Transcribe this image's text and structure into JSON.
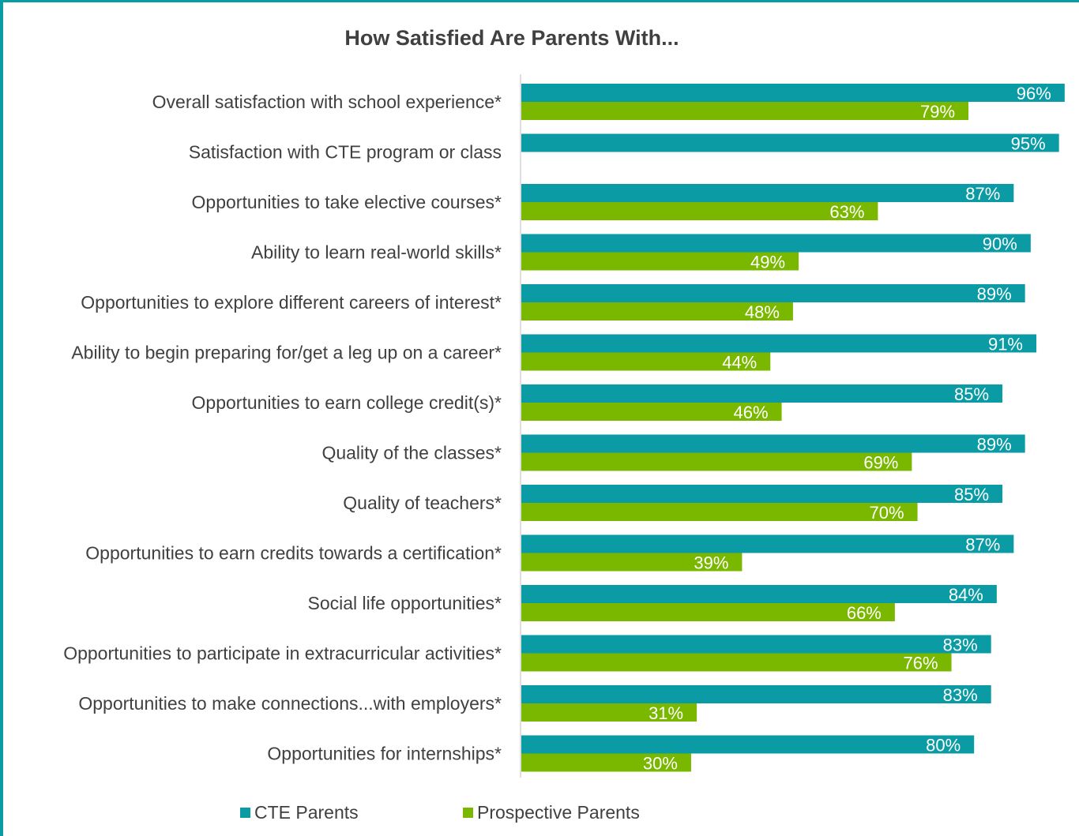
{
  "chart_data": {
    "type": "bar",
    "orientation": "horizontal",
    "title": "How Satisfied Are Parents With...",
    "xlabel": "",
    "ylabel": "",
    "xlim": [
      0,
      100
    ],
    "grid": false,
    "legend_position": "bottom",
    "categories": [
      "Overall satisfaction with school experience*",
      "Satisfaction with CTE program or class",
      "Opportunities to take elective courses*",
      "Ability to learn real-world skills*",
      "Opportunities to explore different careers of interest*",
      "Ability to begin preparing for/get a leg up on a career*",
      "Opportunities to earn college credit(s)*",
      "Quality of the classes*",
      "Quality of teachers*",
      "Opportunities to earn credits towards a certification*",
      "Social life opportunities*",
      "Opportunities to participate in extracurricular activities*",
      "Opportunities to make connections...with employers*",
      "Opportunities for internships*"
    ],
    "series": [
      {
        "name": "CTE Parents",
        "color": "#0a9ba4",
        "values": [
          96,
          95,
          87,
          90,
          89,
          91,
          85,
          89,
          85,
          87,
          84,
          83,
          83,
          80
        ]
      },
      {
        "name": "Prospective Parents",
        "color": "#7ab800",
        "values": [
          79,
          null,
          63,
          49,
          48,
          44,
          46,
          69,
          70,
          39,
          66,
          76,
          31,
          30
        ]
      }
    ],
    "value_suffix": "%"
  }
}
